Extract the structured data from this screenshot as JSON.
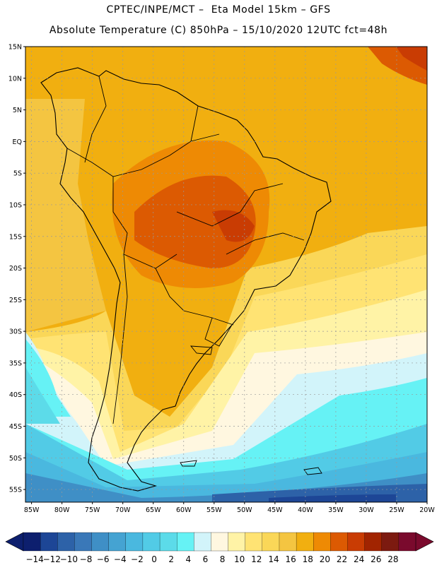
{
  "header": {
    "line1": "CPTEC/INPE/MCT –  Eta Model 15km – GFS",
    "line2": "Absolute Temperature (C) 850hPa – 15/10/2020 12UTC fct=48h"
  },
  "map": {
    "lat_labels": [
      "15N",
      "10N",
      "5N",
      "EQ",
      "5S",
      "10S",
      "15S",
      "20S",
      "25S",
      "30S",
      "35S",
      "40S",
      "45S",
      "50S",
      "55S"
    ],
    "lon_labels": [
      "85W",
      "80W",
      "75W",
      "70W",
      "65W",
      "60W",
      "55W",
      "50W",
      "45W",
      "40W",
      "35W",
      "30W",
      "25W",
      "20W"
    ],
    "lat_range": [
      15,
      -57
    ],
    "lon_range": [
      -86,
      -20
    ]
  },
  "colorbar": {
    "labels": [
      "-14",
      "-12",
      "-10",
      "-8",
      "-6",
      "-4",
      "-2",
      "0",
      "2",
      "4",
      "6",
      "8",
      "10",
      "12",
      "14",
      "16",
      "18",
      "20",
      "22",
      "24",
      "26",
      "28"
    ],
    "colors": [
      "#0d1f6e",
      "#1d4696",
      "#2d62a8",
      "#3a78b8",
      "#3f8fc6",
      "#45a3d2",
      "#4ab8df",
      "#52cbe6",
      "#5cdbe9",
      "#66f2f5",
      "#d2f4fa",
      "#fff7e0",
      "#fff3a6",
      "#ffe373",
      "#fad758",
      "#f4c541",
      "#f1af10",
      "#ee8a04",
      "#dc5a02",
      "#c93c03",
      "#a12401",
      "#7c1a10",
      "#7a0a2d"
    ],
    "left_arrow_color": "#0d1f6e",
    "right_arrow_color": "#7a0a2d"
  }
}
